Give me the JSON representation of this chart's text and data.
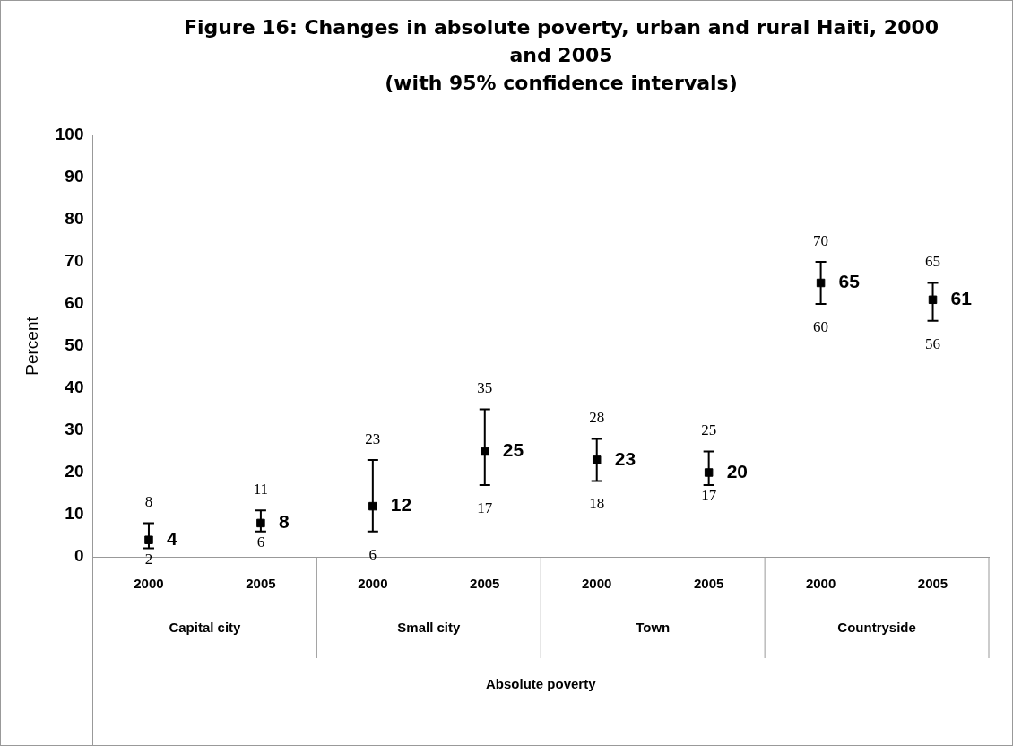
{
  "chart_data": {
    "type": "scatter",
    "title": "Figure 16: Changes in absolute poverty, urban and rural Haiti, 2000 and 2005",
    "subtitle": "(with 95% confidence intervals)",
    "ylabel": "Percent",
    "categories": [
      "2000",
      "2005",
      "2000",
      "2005",
      "2000",
      "2005",
      "2000",
      "2005"
    ],
    "values": [
      4,
      8,
      12,
      25,
      23,
      20,
      65,
      61
    ],
    "value_labels": [
      "4",
      "8",
      "12",
      "25",
      "23",
      "20",
      "65",
      "61"
    ],
    "errors": [
      [
        2,
        8
      ],
      [
        6,
        11
      ],
      [
        6,
        23
      ],
      [
        17,
        35
      ],
      [
        18,
        28
      ],
      [
        17,
        25
      ],
      [
        60,
        70
      ],
      [
        56,
        65
      ]
    ],
    "color": "#000000",
    "marker": "square",
    "annotations": [
      "Capital city",
      "Small city",
      "Town",
      "Countryside",
      "Absolute poverty",
      {
        "text": "8",
        "y": 8
      },
      {
        "text": "2",
        "y": 2
      },
      {
        "text": "11",
        "y": 11
      },
      {
        "text": "6",
        "y": 6
      },
      {
        "text": "23",
        "y": 23
      },
      {
        "text": "6",
        "y": 6
      },
      {
        "text": "35",
        "y": 35
      },
      {
        "text": "17",
        "y": 17
      },
      {
        "text": "28",
        "y": 28
      },
      {
        "text": "18",
        "y": 18
      },
      {
        "text": "25",
        "y": 25
      },
      {
        "text": "17",
        "y": 17
      },
      {
        "text": "70",
        "y": 70
      },
      {
        "text": "60",
        "y": 60
      },
      {
        "text": "65",
        "y": 65
      },
      {
        "text": "56",
        "y": 56
      }
    ],
    "ylim": [
      0,
      100
    ],
    "yticks": [
      0,
      10,
      20,
      30,
      40,
      50,
      60,
      70,
      80,
      90,
      100
    ],
    "grid": false,
    "legend": false
  }
}
